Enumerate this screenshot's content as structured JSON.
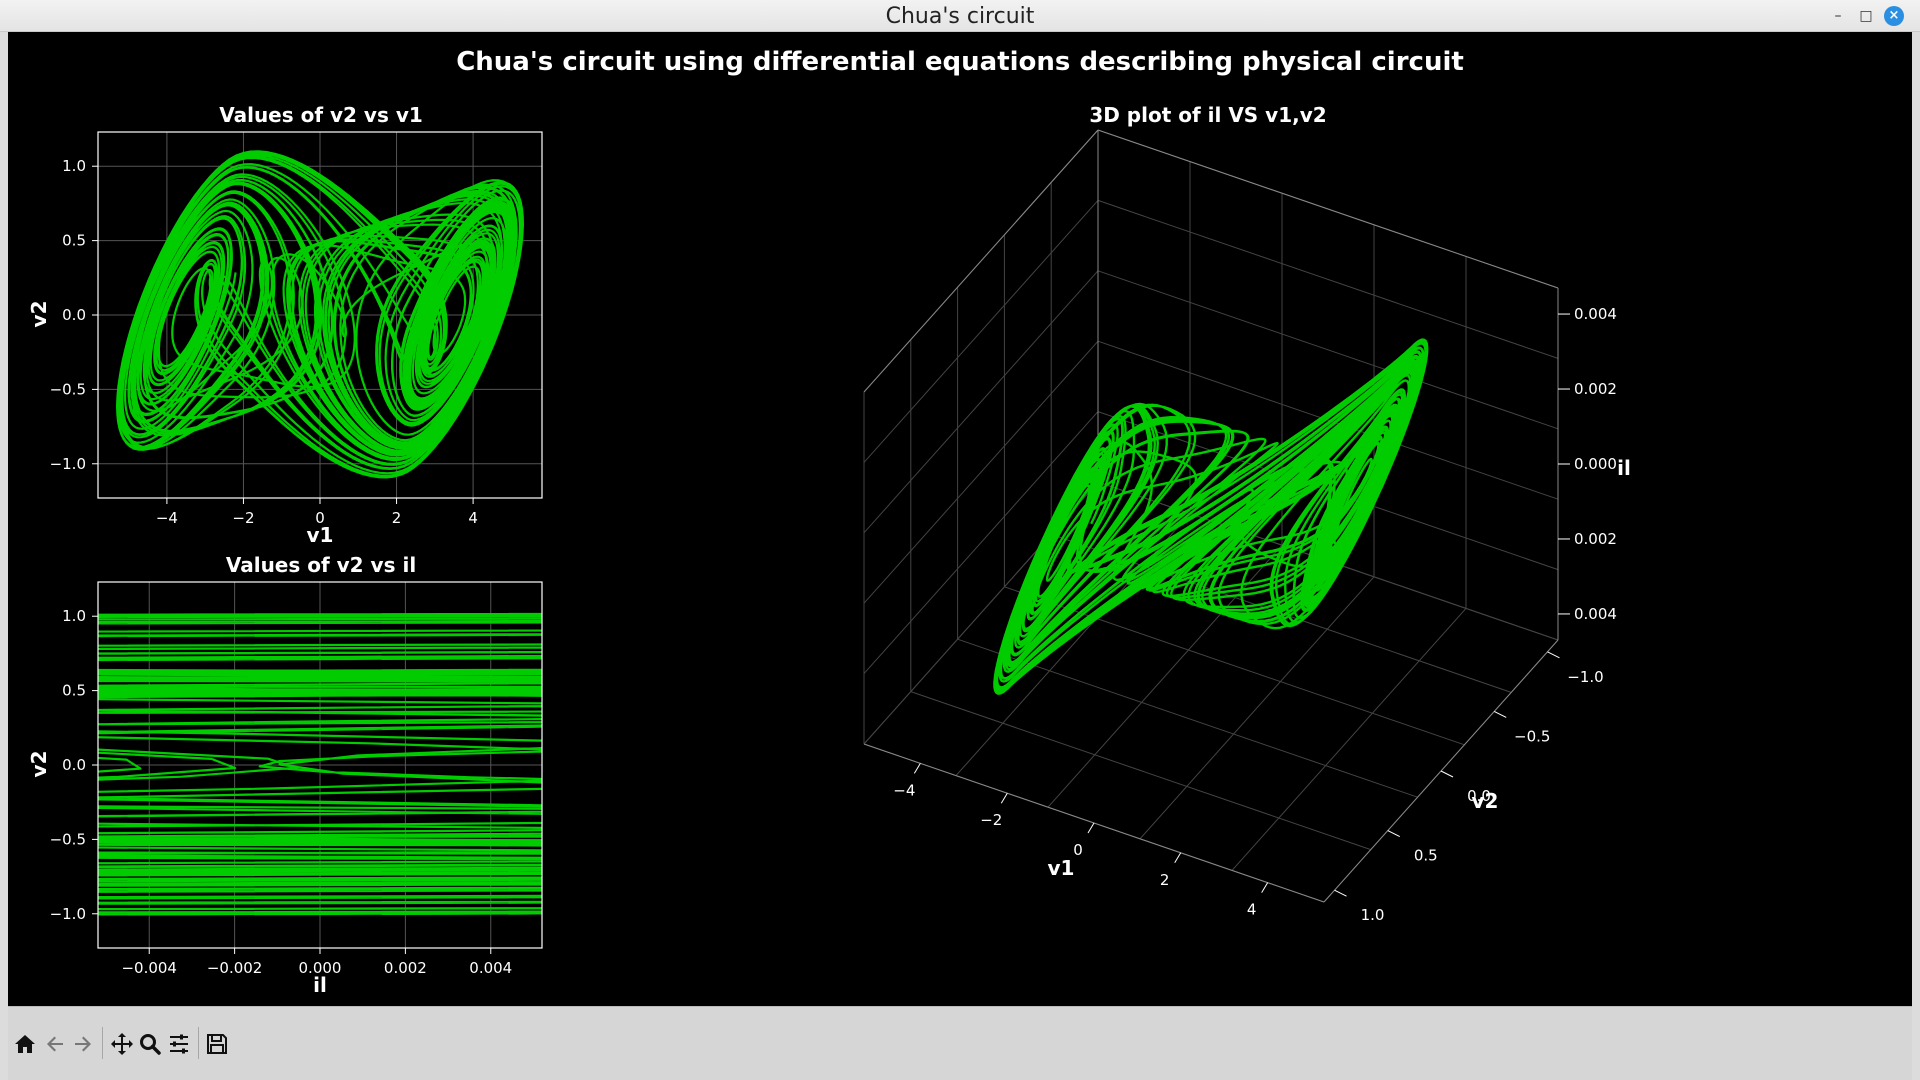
{
  "window": {
    "title": "Chua's circuit",
    "minimize_glyph": "–",
    "maximize_glyph": "□",
    "close_glyph": "×"
  },
  "figure": {
    "suptitle": "Chua's circuit using differential equations describing physical circuit",
    "background": "#000000",
    "line_color": "#00cc00"
  },
  "chart_data": [
    {
      "type": "line",
      "title": "Values of v2 vs v1",
      "xlabel": "v1",
      "ylabel": "v2",
      "xlim": [
        -5.8,
        5.8
      ],
      "ylim": [
        -1.23,
        1.23
      ],
      "xticks": [
        -4,
        -2,
        0,
        2,
        4
      ],
      "xticklabels": [
        "−4",
        "−2",
        "0",
        "2",
        "4"
      ],
      "yticks": [
        -1.0,
        -0.5,
        0.0,
        0.5,
        1.0
      ],
      "yticklabels": [
        "−1.0",
        "−0.5",
        "0.0",
        "0.5",
        "1.0"
      ],
      "grid": true,
      "series": [
        {
          "color": "#00cc00",
          "x_range": [
            -5.3,
            5.3
          ],
          "y_range": [
            -1.1,
            1.1
          ]
        }
      ]
    },
    {
      "type": "line",
      "title": "Values of v2 vs il",
      "xlabel": "il",
      "ylabel": "v2",
      "xlim": [
        -0.0052,
        0.0052
      ],
      "ylim": [
        -1.23,
        1.23
      ],
      "xticks": [
        -0.004,
        -0.002,
        0.0,
        0.002,
        0.004
      ],
      "xticklabels": [
        "−0.004",
        "−0.002",
        "0.000",
        "0.002",
        "0.004"
      ],
      "yticks": [
        -1.0,
        -0.5,
        0.0,
        0.5,
        1.0
      ],
      "yticklabels": [
        "−1.0",
        "−0.5",
        "0.0",
        "0.5",
        "1.0"
      ],
      "grid": true,
      "series": [
        {
          "color": "#00cc00",
          "x_range": [
            -0.0047,
            0.0047
          ],
          "y_range": [
            -1.1,
            1.1
          ]
        }
      ]
    },
    {
      "type": "line",
      "title": "3D plot of il VS v1,v2",
      "xlabel": "v1",
      "ylabel": "v2",
      "zlabel": "il",
      "xticklabels": [
        "−4",
        "−2",
        "0",
        "2",
        "4"
      ],
      "yticklabels": [
        "1.0",
        "0.5",
        "0.0",
        "−0.5",
        "−1.0"
      ],
      "zticklabels": [
        "0.004",
        "0.002",
        "0.000",
        "0.002",
        "0.004"
      ],
      "grid": true,
      "series": [
        {
          "color": "#00cc00",
          "x_range": [
            -5.3,
            5.3
          ],
          "y_range": [
            -1.1,
            1.1
          ],
          "z_range": [
            -0.0047,
            0.0047
          ]
        }
      ]
    }
  ],
  "toolbar": {
    "home": "home-icon",
    "back": "arrow-left-icon",
    "forward": "arrow-right-icon",
    "pan": "move-icon",
    "zoom": "magnifier-icon",
    "configure": "sliders-icon",
    "save": "floppy-icon"
  }
}
